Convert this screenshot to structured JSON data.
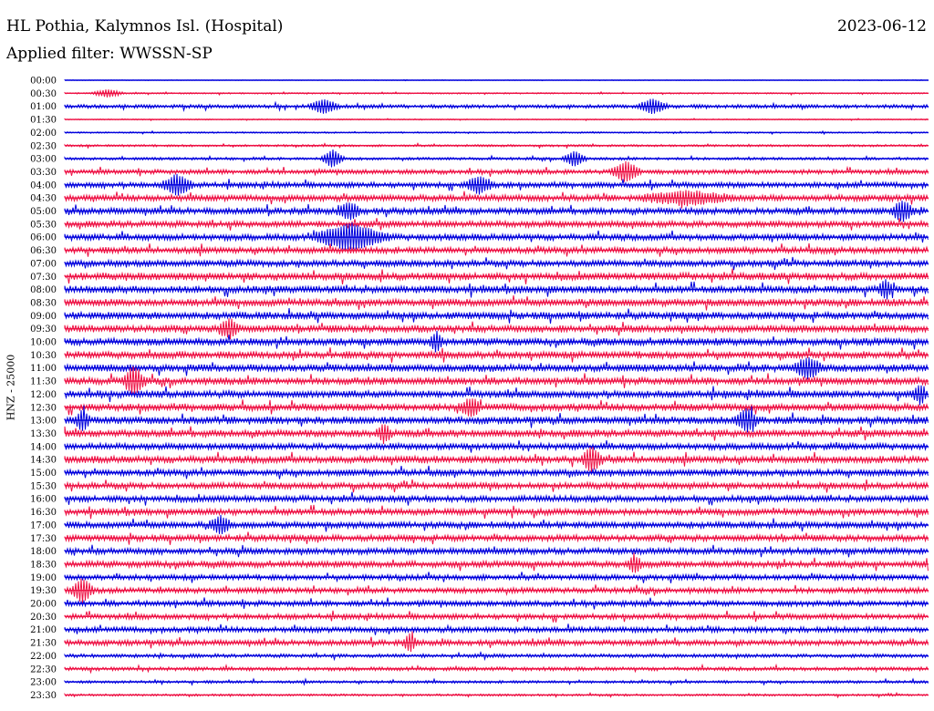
{
  "header": {
    "station": "HL Pothia, Kalymnos Isl. (Hospital)",
    "date": "2023-06-12",
    "filter": "Applied filter: WWSSN-SP"
  },
  "chart_data": {
    "type": "line",
    "title": "HL Pothia, Kalymnos Isl. (Hospital)",
    "ylabel": "HNZ - 25000",
    "xlabel": "",
    "colors": [
      "#0000dd",
      "#ee1144"
    ],
    "rows": [
      "00:00",
      "00:30",
      "01:00",
      "01:30",
      "02:00",
      "02:30",
      "03:00",
      "03:30",
      "04:00",
      "04:30",
      "05:00",
      "05:30",
      "06:00",
      "06:30",
      "07:00",
      "07:30",
      "08:00",
      "08:30",
      "09:00",
      "09:30",
      "10:00",
      "10:30",
      "11:00",
      "11:30",
      "12:00",
      "12:30",
      "13:00",
      "13:30",
      "14:00",
      "14:30",
      "15:00",
      "15:30",
      "16:00",
      "16:30",
      "17:00",
      "17:30",
      "18:00",
      "18:30",
      "19:00",
      "19:30",
      "20:00",
      "20:30",
      "21:00",
      "21:30",
      "22:00",
      "22:30",
      "23:00",
      "23:30"
    ],
    "noise_level": [
      0.3,
      0.8,
      2.0,
      0.6,
      0.8,
      1.2,
      1.5,
      2.5,
      3.0,
      3.5,
      3.5,
      3.5,
      3.5,
      3.5,
      3.5,
      4.0,
      4.0,
      4.0,
      4.0,
      4.0,
      4.0,
      4.0,
      4.0,
      4.0,
      4.0,
      4.0,
      4.0,
      4.0,
      3.5,
      4.0,
      3.5,
      3.5,
      3.5,
      3.5,
      3.5,
      3.5,
      3.5,
      3.5,
      3.0,
      3.0,
      3.0,
      3.0,
      3.0,
      3.0,
      2.0,
      2.0,
      1.5,
      1.2
    ],
    "events": [
      {
        "row": 1,
        "pos": 0.05,
        "amp": 4,
        "width": 0.02
      },
      {
        "row": 2,
        "pos": 0.3,
        "amp": 7,
        "width": 0.02
      },
      {
        "row": 2,
        "pos": 0.68,
        "amp": 7,
        "width": 0.02
      },
      {
        "row": 6,
        "pos": 0.31,
        "amp": 9,
        "width": 0.015
      },
      {
        "row": 6,
        "pos": 0.59,
        "amp": 8,
        "width": 0.015
      },
      {
        "row": 7,
        "pos": 0.65,
        "amp": 10,
        "width": 0.02
      },
      {
        "row": 8,
        "pos": 0.13,
        "amp": 10,
        "width": 0.02
      },
      {
        "row": 8,
        "pos": 0.48,
        "amp": 8,
        "width": 0.02
      },
      {
        "row": 9,
        "pos": 0.72,
        "amp": 6,
        "width": 0.06
      },
      {
        "row": 10,
        "pos": 0.33,
        "amp": 8,
        "width": 0.015
      },
      {
        "row": 10,
        "pos": 0.97,
        "amp": 10,
        "width": 0.015
      },
      {
        "row": 12,
        "pos": 0.33,
        "amp": 12,
        "width": 0.05
      },
      {
        "row": 16,
        "pos": 0.95,
        "amp": 9,
        "width": 0.01
      },
      {
        "row": 19,
        "pos": 0.19,
        "amp": 9,
        "width": 0.015
      },
      {
        "row": 20,
        "pos": 0.43,
        "amp": 9,
        "width": 0.01
      },
      {
        "row": 22,
        "pos": 0.86,
        "amp": 10,
        "width": 0.02
      },
      {
        "row": 23,
        "pos": 0.08,
        "amp": 14,
        "width": 0.015
      },
      {
        "row": 24,
        "pos": 0.99,
        "amp": 9,
        "width": 0.01
      },
      {
        "row": 25,
        "pos": 0.47,
        "amp": 8,
        "width": 0.015
      },
      {
        "row": 26,
        "pos": 0.02,
        "amp": 10,
        "width": 0.01
      },
      {
        "row": 26,
        "pos": 0.79,
        "amp": 11,
        "width": 0.015
      },
      {
        "row": 27,
        "pos": 0.37,
        "amp": 9,
        "width": 0.01
      },
      {
        "row": 29,
        "pos": 0.61,
        "amp": 11,
        "width": 0.015
      },
      {
        "row": 34,
        "pos": 0.18,
        "amp": 8,
        "width": 0.015
      },
      {
        "row": 37,
        "pos": 0.66,
        "amp": 8,
        "width": 0.01
      },
      {
        "row": 39,
        "pos": 0.02,
        "amp": 12,
        "width": 0.015
      },
      {
        "row": 43,
        "pos": 0.4,
        "amp": 8,
        "width": 0.01
      }
    ]
  }
}
